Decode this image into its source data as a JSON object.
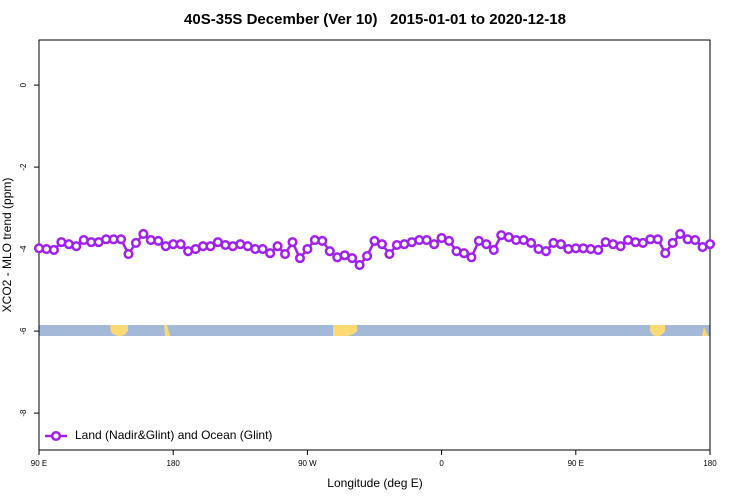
{
  "chart_data": {
    "type": "line",
    "title": "40S-35S December (Ver 10)   2015-01-01 to 2020-12-18",
    "xlabel": "Longitude (deg E)",
    "ylabel": "XCO2 - MLO trend (ppm)",
    "xlim": [
      90,
      540
    ],
    "ylim": [
      -8.9,
      1.1
    ],
    "xticks": [
      {
        "value": 90,
        "label": "90 E"
      },
      180,
      {
        "value": 270,
        "label": "90 W"
      },
      {
        "value": 360,
        "label": "0"
      },
      {
        "value": 450,
        "label": "90 E"
      },
      {
        "value": 540,
        "label": "180"
      }
    ],
    "yticks": [
      0,
      -2,
      -4,
      -6,
      -8
    ],
    "legend": "lower left",
    "series": [
      {
        "name": "Land (Nadir&Glint) and Ocean (Glint)",
        "color": "#a020f0",
        "x": [
          90,
          95,
          100,
          105,
          110,
          115,
          120,
          125,
          130,
          135,
          140,
          145,
          150,
          155,
          160,
          165,
          170,
          175,
          180,
          185,
          190,
          195,
          200,
          205,
          210,
          215,
          220,
          225,
          230,
          235,
          240,
          245,
          250,
          255,
          260,
          265,
          270,
          275,
          280,
          285,
          290,
          295,
          300,
          305,
          310,
          315,
          320,
          325,
          330,
          335,
          340,
          345,
          350,
          355,
          360,
          365,
          370,
          375,
          380,
          385,
          390,
          395,
          400,
          405,
          410,
          415,
          420,
          425,
          430,
          435,
          440,
          445,
          450,
          455,
          460,
          465,
          470,
          475,
          480,
          485,
          490,
          495,
          500,
          505,
          510,
          515,
          520,
          525,
          530,
          535,
          540
        ],
        "values": [
          -3.98,
          -4.0,
          -4.02,
          -3.83,
          -3.88,
          -3.93,
          -3.78,
          -3.83,
          -3.83,
          -3.76,
          -3.76,
          -3.76,
          -4.12,
          -3.85,
          -3.63,
          -3.78,
          -3.8,
          -3.93,
          -3.88,
          -3.88,
          -4.05,
          -4.0,
          -3.93,
          -3.93,
          -3.83,
          -3.9,
          -3.93,
          -3.88,
          -3.93,
          -4.0,
          -4.0,
          -4.1,
          -3.93,
          -4.12,
          -3.83,
          -4.22,
          -4.0,
          -3.78,
          -3.8,
          -4.05,
          -4.2,
          -4.15,
          -4.22,
          -4.39,
          -4.17,
          -3.8,
          -3.88,
          -4.12,
          -3.9,
          -3.88,
          -3.83,
          -3.78,
          -3.78,
          -3.88,
          -3.73,
          -3.8,
          -4.05,
          -4.1,
          -4.2,
          -3.8,
          -3.88,
          -4.02,
          -3.66,
          -3.71,
          -3.78,
          -3.78,
          -3.85,
          -4.0,
          -4.05,
          -3.85,
          -3.88,
          -4.0,
          -3.98,
          -3.98,
          -4.0,
          -4.02,
          -3.83,
          -3.88,
          -3.93,
          -3.78,
          -3.83,
          -3.85,
          -3.76,
          -3.76,
          -4.1,
          -3.85,
          -3.63,
          -3.76,
          -3.78,
          -3.95,
          -3.88
        ]
      }
    ]
  }
}
